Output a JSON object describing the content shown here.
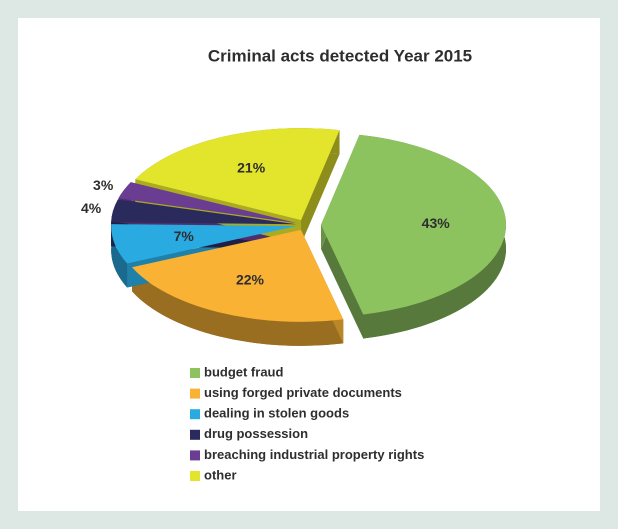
{
  "chart_data": {
    "type": "pie",
    "title": "Criminal acts detected Year 2015",
    "categories": [
      "budget fraud",
      "using forged private documents",
      "dealing in stolen goods",
      "drug possession",
      "breaching industrial property rights",
      "other"
    ],
    "values": [
      43,
      22,
      7,
      4,
      3,
      21
    ],
    "value_labels": [
      "43%",
      "22%",
      "7%",
      "4%",
      "3%",
      "21%"
    ],
    "colors": [
      "#8dc35f",
      "#f9b233",
      "#29abe2",
      "#2b2a5c",
      "#6a3d92",
      "#e3e42c"
    ],
    "legend": "bottom"
  }
}
